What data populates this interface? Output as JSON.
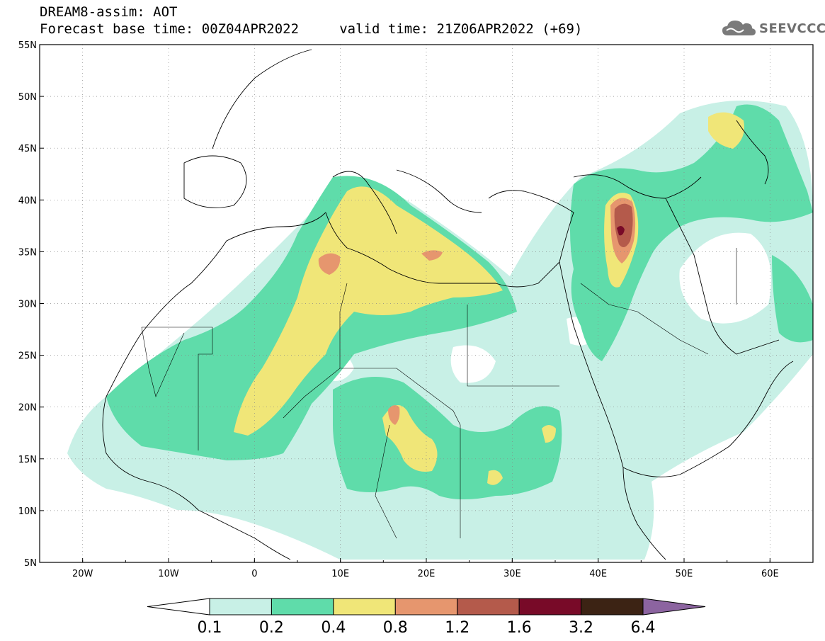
{
  "header": {
    "title_line1": "DREAM8-assim: AOT",
    "title_line2": "Forecast base time: 00Z04APR2022     valid time: 21Z06APR2022 (+69)",
    "logo_text": "SEEVCCC"
  },
  "map": {
    "lon_range": [
      -25,
      65
    ],
    "lat_range": [
      5,
      55
    ],
    "lat_labels": [
      "55N",
      "50N",
      "45N",
      "40N",
      "35N",
      "30N",
      "25N",
      "20N",
      "15N",
      "10N",
      "5N"
    ],
    "lon_labels": [
      "20W",
      "10W",
      "0",
      "10E",
      "20E",
      "30E",
      "40E",
      "50E",
      "60E"
    ],
    "grid": "dotted"
  },
  "colorbar": {
    "labels": [
      "0.1",
      "0.2",
      "0.4",
      "0.8",
      "1.2",
      "1.6",
      "3.2",
      "6.4"
    ],
    "colors": [
      "#ffffff",
      "#c8f0e6",
      "#5fdcaa",
      "#f0e678",
      "#e6966e",
      "#b45a4b",
      "#780a28",
      "#3c2314",
      "#8c64a0"
    ]
  }
}
